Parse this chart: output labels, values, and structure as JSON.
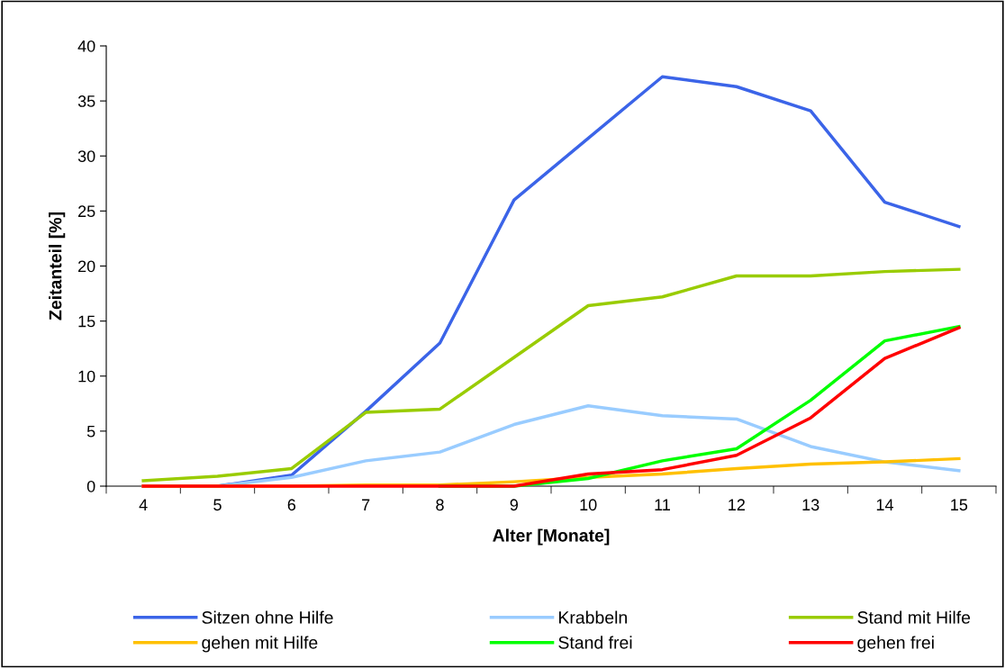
{
  "chart_data": {
    "type": "line",
    "xlabel": "Alter [Monate]",
    "ylabel": "Zeitanteil [%]",
    "categories": [
      "4",
      "5",
      "6",
      "7",
      "8",
      "9",
      "10",
      "11",
      "12",
      "13",
      "14",
      "15"
    ],
    "ylim": [
      0,
      40
    ],
    "yticks": [
      0,
      5,
      10,
      15,
      20,
      25,
      30,
      35,
      40
    ],
    "grid": false,
    "legend": "bottom",
    "marker": "none",
    "line_style": "solid",
    "series": [
      {
        "name": "Sitzen ohne Hilfe",
        "color": "#3b64e8",
        "values": [
          0,
          0,
          1.0,
          6.8,
          13.0,
          26.0,
          31.6,
          37.2,
          36.3,
          34.1,
          25.8,
          23.6
        ]
      },
      {
        "name": "Krabbeln",
        "color": "#99ccff",
        "values": [
          0,
          0,
          0.8,
          2.3,
          3.1,
          5.6,
          7.3,
          6.4,
          6.1,
          3.6,
          2.2,
          1.4
        ]
      },
      {
        "name": "Stand mit Hilfe",
        "color": "#99cc00",
        "values": [
          0.5,
          0.9,
          1.6,
          6.7,
          7.0,
          11.7,
          16.4,
          17.2,
          19.1,
          19.1,
          19.5,
          19.7
        ]
      },
      {
        "name": "gehen mit Hilfe",
        "color": "#ffc000",
        "values": [
          0,
          0,
          0,
          0.1,
          0.1,
          0.4,
          0.8,
          1.1,
          1.6,
          2.0,
          2.2,
          2.5
        ]
      },
      {
        "name": "Stand frei",
        "color": "#00ff00",
        "values": [
          null,
          null,
          null,
          null,
          0,
          0,
          0.7,
          2.3,
          3.4,
          7.8,
          13.2,
          14.5
        ]
      },
      {
        "name": "gehen frei",
        "color": "#ff0000",
        "values": [
          0,
          0,
          0,
          0,
          0,
          0,
          1.1,
          1.5,
          2.8,
          6.2,
          11.6,
          14.4
        ]
      }
    ]
  }
}
